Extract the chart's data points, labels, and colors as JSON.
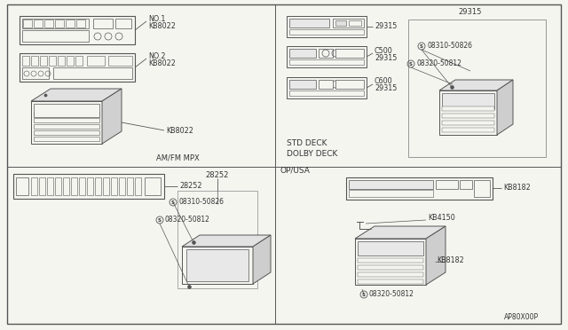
{
  "bg_color": "#f5f5f0",
  "watermark": "AP80X00P",
  "labels": {
    "no1": "NO.1",
    "kb8022a": "KB8022",
    "no2": "NO.2",
    "kb8022b": "KB8022",
    "kb8022c": "KB8022",
    "amfm": "AM/FM MPX",
    "std": "STD DECK",
    "dolby": "DOLBY DECK",
    "p29315a": "29315",
    "c500": "C500",
    "p29315b": "29315",
    "c600": "C600",
    "p29315c": "29315",
    "p29315top": "29315",
    "s1a": "08310-50826",
    "s2a": "08320-50812",
    "p28252a": "28252",
    "p28252b": "28252",
    "s1b": "08310-50826",
    "s2b": "08320-50812",
    "opusa": "OP/USA",
    "kb8182a": "KB8182",
    "kb4150": "KB4150",
    "kb8182b": "KB8182",
    "s2c": "08320-50812"
  }
}
